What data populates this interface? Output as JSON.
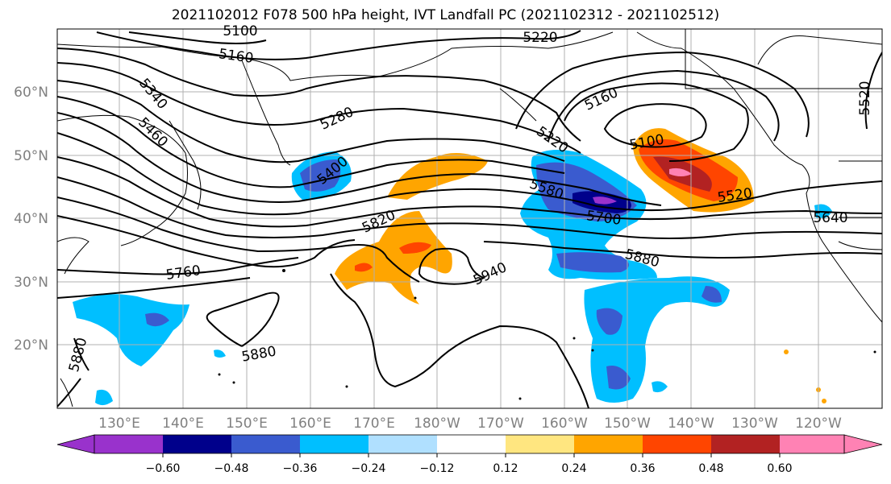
{
  "title": "2021102012 F078 500 hPa height, IVT Landfall PC (2021102312 - 2021102512)",
  "lat_labels": [
    "60°N",
    "50°N",
    "40°N",
    "30°N",
    "20°N"
  ],
  "lon_labels": [
    "130°E",
    "140°E",
    "150°E",
    "160°E",
    "170°E",
    "180°W",
    "170°W",
    "160°W",
    "150°W",
    "140°W",
    "130°W",
    "120°W"
  ],
  "contour_labels": [
    "5100",
    "5160",
    "5220",
    "5340",
    "5460",
    "5280",
    "5400",
    "5160",
    "5220",
    "5100",
    "5580",
    "5700",
    "5520",
    "5640",
    "5520",
    "5820",
    "5760",
    "5940",
    "5880",
    "5880",
    "5880"
  ],
  "colorbar": {
    "ticks": [
      "−0.60",
      "−0.48",
      "−0.36",
      "−0.24",
      "−0.12",
      "0.12",
      "0.24",
      "0.36",
      "0.48",
      "0.60"
    ],
    "colors": [
      "#9932cc",
      "#00008b",
      "#3a5bcf",
      "#00bfff",
      "#b0e0ff",
      "#ffffff",
      "#ffe680",
      "#ffa500",
      "#ff4500",
      "#b22222",
      "#ff82b4",
      "#ff82b4"
    ]
  }
}
